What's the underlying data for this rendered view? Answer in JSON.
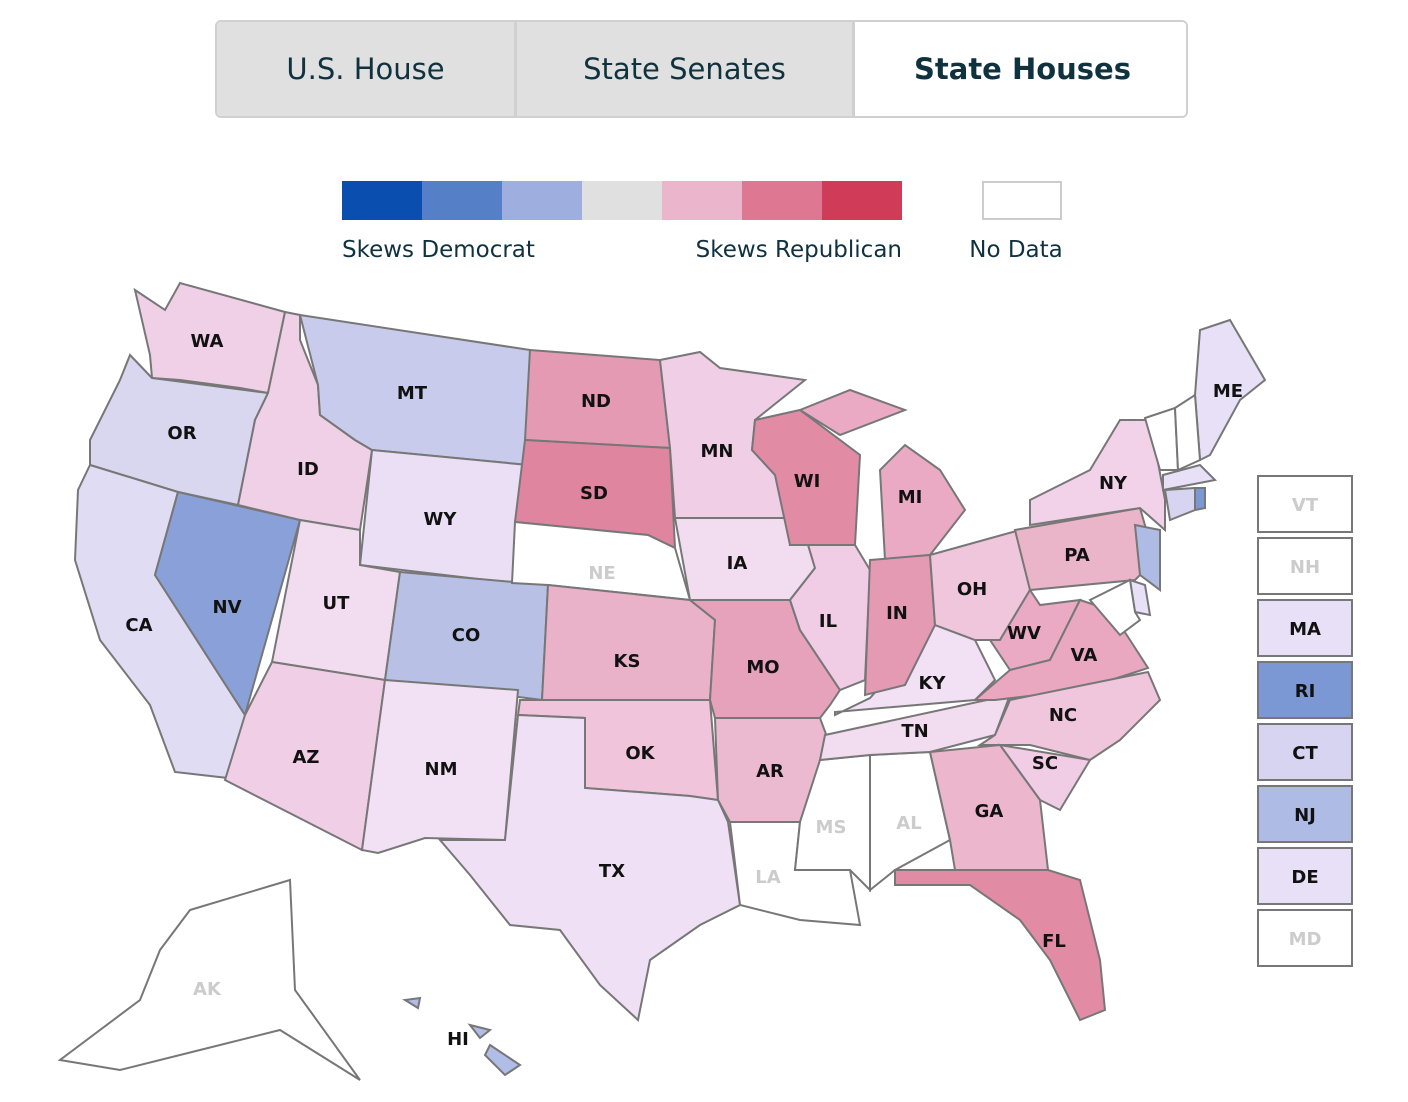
{
  "tabs": [
    {
      "label": "U.S. House",
      "selected": false
    },
    {
      "label": "State Senates",
      "selected": false
    },
    {
      "label": "State Houses",
      "selected": true
    }
  ],
  "legend": {
    "colors": [
      "#0a4eb0",
      "#5580c8",
      "#9eaede",
      "#e0e0e0",
      "#ebb6cc",
      "#de7791",
      "#d03b57"
    ],
    "left_label": "Skews Democrat",
    "right_label": "Skews Republican",
    "no_data_label": "No Data",
    "no_data_color": "#ffffff"
  },
  "states": [
    {
      "abbr": "WA",
      "color": "#f0d0e6"
    },
    {
      "abbr": "OR",
      "color": "#d9d6f0"
    },
    {
      "abbr": "CA",
      "color": "#e0dcf4"
    },
    {
      "abbr": "NV",
      "color": "#8aa0d8"
    },
    {
      "abbr": "ID",
      "color": "#f0d0e6"
    },
    {
      "abbr": "MT",
      "color": "#c8cbeb"
    },
    {
      "abbr": "WY",
      "color": "#eadff5"
    },
    {
      "abbr": "UT",
      "color": "#f2dcef"
    },
    {
      "abbr": "CO",
      "color": "#b8c0e6"
    },
    {
      "abbr": "AZ",
      "color": "#f0cfe6"
    },
    {
      "abbr": "NM",
      "color": "#f2e0f5"
    },
    {
      "abbr": "ND",
      "color": "#e59ab4"
    },
    {
      "abbr": "SD",
      "color": "#e0859f"
    },
    {
      "abbr": "NE",
      "color": null
    },
    {
      "abbr": "KS",
      "color": "#eab2c8"
    },
    {
      "abbr": "OK",
      "color": "#f0c4da"
    },
    {
      "abbr": "TX",
      "color": "#f0e0f5"
    },
    {
      "abbr": "MN",
      "color": "#f0cfe6"
    },
    {
      "abbr": "IA",
      "color": "#f2dcef"
    },
    {
      "abbr": "MO",
      "color": "#e6a2bb"
    },
    {
      "abbr": "AR",
      "color": "#ecbad0"
    },
    {
      "abbr": "LA",
      "color": null
    },
    {
      "abbr": "MS",
      "color": null
    },
    {
      "abbr": "AL",
      "color": null
    },
    {
      "abbr": "TN",
      "color": "#f2dcef"
    },
    {
      "abbr": "KY",
      "color": "#f2e0f5"
    },
    {
      "abbr": "IL",
      "color": "#f0cde5"
    },
    {
      "abbr": "WI",
      "color": "#e28ba4"
    },
    {
      "abbr": "MI",
      "color": "#eaaac4"
    },
    {
      "abbr": "IN",
      "color": "#e59ab4"
    },
    {
      "abbr": "OH",
      "color": "#f0c6dc"
    },
    {
      "abbr": "WV",
      "color": "#eaaac4"
    },
    {
      "abbr": "VA",
      "color": "#eaa8c0"
    },
    {
      "abbr": "NC",
      "color": "#f0c6dc"
    },
    {
      "abbr": "SC",
      "color": "#f0cde5"
    },
    {
      "abbr": "GA",
      "color": "#ecb6cc"
    },
    {
      "abbr": "FL",
      "color": "#e28ba4"
    },
    {
      "abbr": "PA",
      "color": "#eab4c9"
    },
    {
      "abbr": "NY",
      "color": "#f2d2e8"
    },
    {
      "abbr": "ME",
      "color": "#e8e0f6"
    },
    {
      "abbr": "VT",
      "color": null
    },
    {
      "abbr": "NH",
      "color": null
    },
    {
      "abbr": "MA",
      "color": "#e8e0f6"
    },
    {
      "abbr": "RI",
      "color": "#7b98d4"
    },
    {
      "abbr": "CT",
      "color": "#d6d4f0"
    },
    {
      "abbr": "NJ",
      "color": "#aebbe4"
    },
    {
      "abbr": "DE",
      "color": "#e8e0f6"
    },
    {
      "abbr": "MD",
      "color": null
    },
    {
      "abbr": "AK",
      "color": null
    },
    {
      "abbr": "HI",
      "color": "#b0bde6"
    }
  ]
}
